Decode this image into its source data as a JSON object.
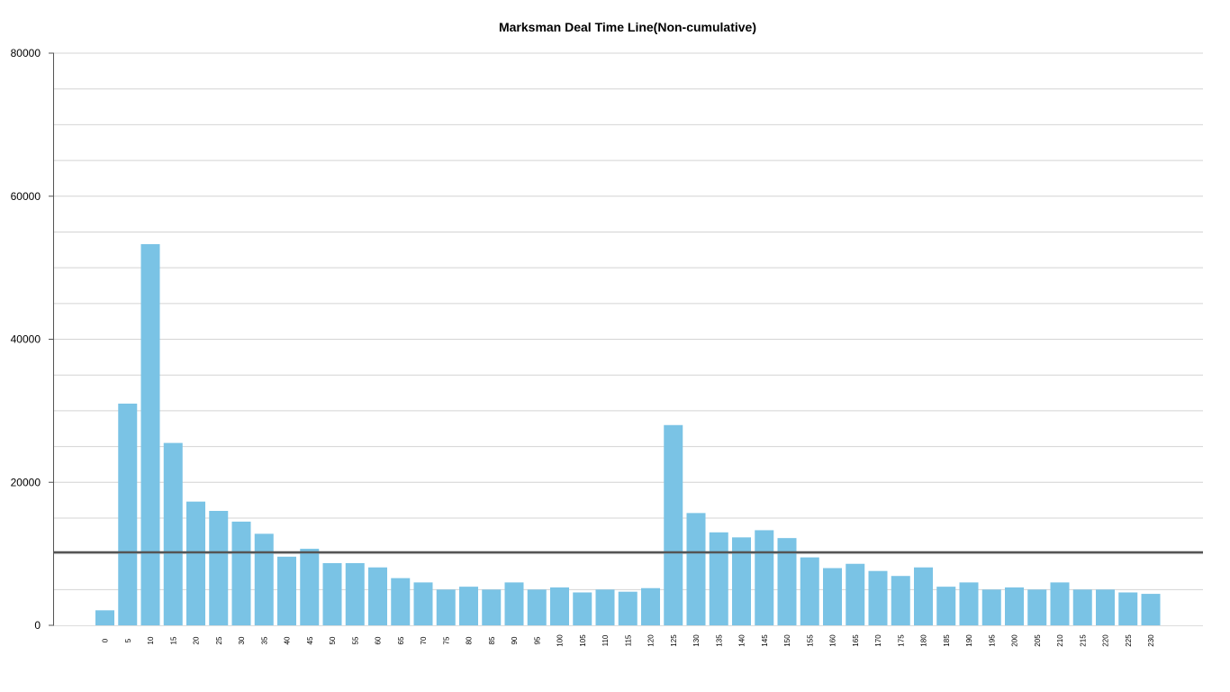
{
  "chart_data": {
    "type": "bar",
    "title": "Marksman Deal Time Line(Non-cumulative)",
    "xlabel": "",
    "ylabel": "",
    "ylim": [
      0,
      80000
    ],
    "yticks": [
      "0",
      "20000",
      "40000",
      "60000",
      "80000"
    ],
    "grid": true,
    "reference_line": 10200,
    "categories": [
      "0",
      "5",
      "10",
      "15",
      "20",
      "25",
      "30",
      "35",
      "40",
      "45",
      "50",
      "55",
      "60",
      "65",
      "70",
      "75",
      "80",
      "85",
      "90",
      "95",
      "100",
      "105",
      "110",
      "115",
      "120",
      "125",
      "130",
      "135",
      "140",
      "145",
      "150",
      "155",
      "160",
      "165",
      "170",
      "175",
      "180",
      "185",
      "190",
      "195",
      "200",
      "205",
      "210",
      "215",
      "220",
      "225",
      "230"
    ],
    "values": [
      2100,
      31000,
      53300,
      25500,
      17300,
      16000,
      14500,
      12800,
      9600,
      10700,
      8700,
      8700,
      8100,
      6600,
      6000,
      5000,
      5400,
      5000,
      6000,
      5000,
      5300,
      4600,
      5000,
      4700,
      5200,
      28000,
      15700,
      13000,
      12300,
      13300,
      12200,
      9500,
      8000,
      8600,
      7600,
      6900,
      8100,
      5400,
      6000,
      5000,
      5300,
      5000,
      6000,
      5000,
      5000,
      4600,
      4400
    ],
    "colors": {
      "bar": "#7ac3e5",
      "grid": "#d4d4d4",
      "axis": "#555555",
      "reference": "#555555"
    }
  }
}
